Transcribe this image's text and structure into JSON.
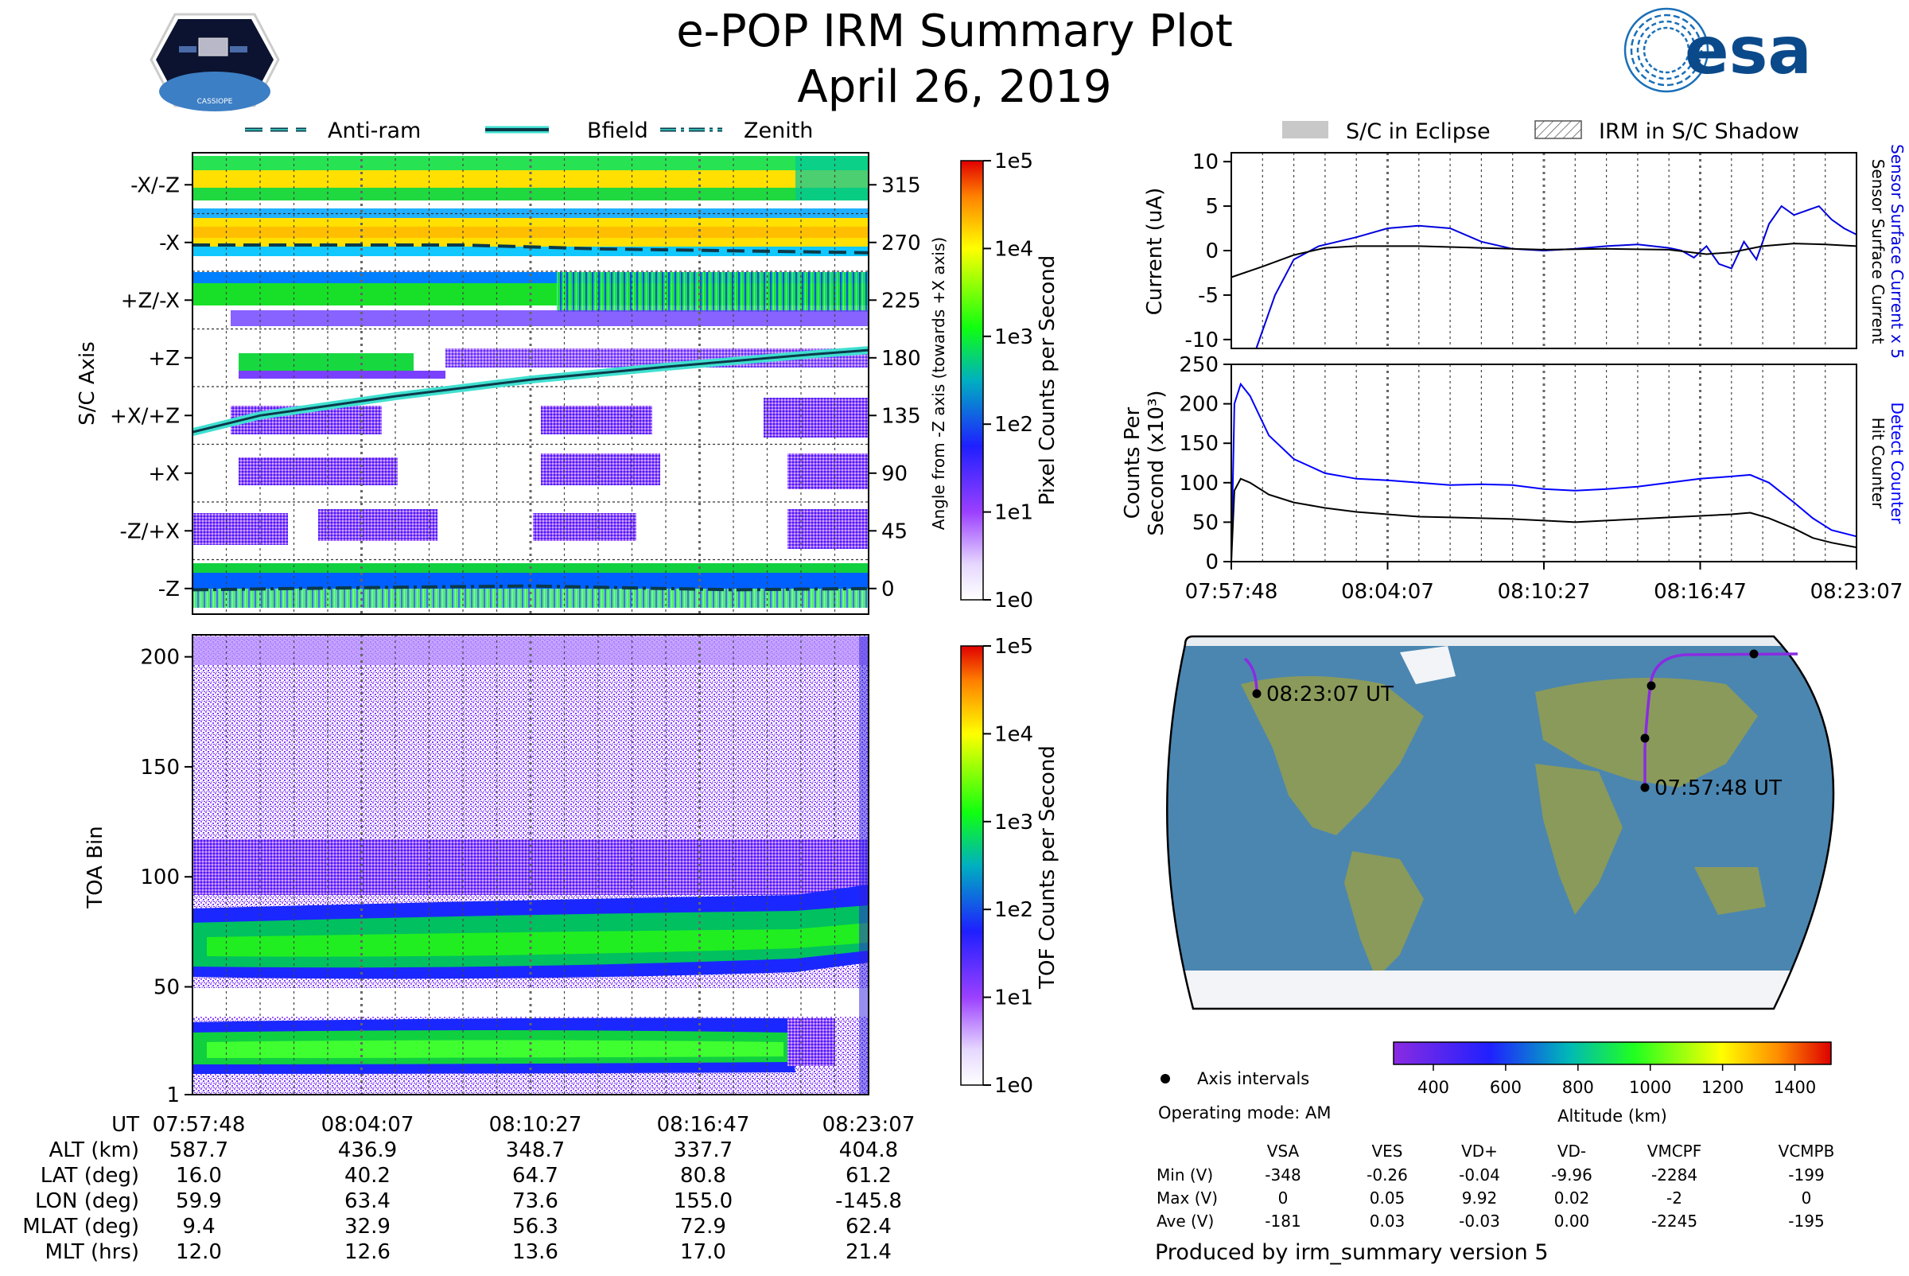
{
  "header": {
    "title_line1": "e-POP IRM Summary Plot",
    "title_line2": "April 26, 2019",
    "left_logo_text": "CASSIOPE",
    "right_logo_text": "esa"
  },
  "colors": {
    "antiram": "#0b3a4a",
    "bfield_outline": "#40e0d0",
    "current_blue": "#0000dd",
    "counts_blue": "#0000ff",
    "black": "#000000",
    "eclipse_gray": "#c8c8c8",
    "ocean": "#4b86b0",
    "land": "#8a9a5b",
    "ice": "#f2f4f8"
  },
  "legend_top": {
    "antiram": "Anti-ram",
    "bfield": "Bfield",
    "zenith": "Zenith"
  },
  "legend_right": {
    "eclipse": "S/C in Eclipse",
    "shadow": "IRM in S/C Shadow"
  },
  "chart_data": [
    {
      "id": "pixel_panel",
      "type": "heatmap",
      "ylabel": "S/C Axis",
      "y_right_label": "Angle from -Z axis (towards +X axis)",
      "categories": [
        "-X/-Z",
        "-X",
        "+Z/-X",
        "+Z",
        "+X/+Z",
        "+X",
        "-Z/+X",
        "-Z"
      ],
      "angle_ticks": [
        315,
        270,
        225,
        180,
        135,
        90,
        45,
        0
      ],
      "ylim": [
        -20,
        340
      ],
      "x_ticks": [
        "07:57:48",
        "08:04:07",
        "08:10:27",
        "08:16:47",
        "08:23:07"
      ],
      "bfield_angle": [
        [
          0,
          122
        ],
        [
          0.1,
          135
        ],
        [
          0.3,
          150
        ],
        [
          0.5,
          163
        ],
        [
          0.7,
          173
        ],
        [
          0.9,
          182
        ],
        [
          1.0,
          186
        ]
      ],
      "antiram_angle": [
        [
          0,
          268
        ],
        [
          0.4,
          268
        ],
        [
          0.6,
          265
        ],
        [
          1.0,
          262
        ]
      ],
      "zenith_angle": [
        [
          0,
          -1
        ],
        [
          0.3,
          1
        ],
        [
          0.5,
          2
        ],
        [
          0.8,
          -1
        ],
        [
          1.0,
          0
        ]
      ],
      "colorbar_label": "Pixel Counts per Second",
      "colorbar_ticks": [
        "1e5",
        "1e4",
        "1e3",
        "1e2",
        "1e1",
        "1e0"
      ]
    },
    {
      "id": "toa_panel",
      "type": "heatmap",
      "ylabel": "TOA Bin",
      "ylim": [
        1,
        210
      ],
      "y_ticks": [
        200,
        150,
        100,
        50,
        1
      ],
      "x_ticks": [
        "07:57:48",
        "08:04:07",
        "08:10:27",
        "08:16:47",
        "08:23:07"
      ],
      "colorbar_label": "TOF Counts per Second",
      "colorbar_ticks": [
        "1e5",
        "1e4",
        "1e3",
        "1e2",
        "1e1",
        "1e0"
      ]
    },
    {
      "id": "current_panel",
      "type": "line",
      "ylabel": "Current (uA)",
      "y_right_label_blue": "Sensor Surface Current x 5",
      "y_right_label_black": "Sensor Surface Current",
      "ylim": [
        -11,
        11
      ],
      "y_ticks": [
        10,
        5,
        0,
        -5,
        -10
      ],
      "series": [
        {
          "name": "Sensor Surface Current x 5",
          "color": "blue",
          "points": [
            [
              0.04,
              -11
            ],
            [
              0.07,
              -5
            ],
            [
              0.1,
              -1
            ],
            [
              0.14,
              0.5
            ],
            [
              0.2,
              1.5
            ],
            [
              0.25,
              2.5
            ],
            [
              0.3,
              2.8
            ],
            [
              0.35,
              2.5
            ],
            [
              0.4,
              1
            ],
            [
              0.45,
              0.2
            ],
            [
              0.5,
              0
            ],
            [
              0.55,
              0.2
            ],
            [
              0.6,
              0.5
            ],
            [
              0.65,
              0.7
            ],
            [
              0.7,
              0.3
            ],
            [
              0.72,
              0
            ],
            [
              0.74,
              -0.8
            ],
            [
              0.76,
              0.5
            ],
            [
              0.78,
              -1.5
            ],
            [
              0.8,
              -2
            ],
            [
              0.82,
              1
            ],
            [
              0.84,
              -1
            ],
            [
              0.86,
              3
            ],
            [
              0.88,
              5
            ],
            [
              0.9,
              4
            ],
            [
              0.92,
              4.5
            ],
            [
              0.94,
              5
            ],
            [
              0.96,
              3.5
            ],
            [
              0.98,
              2.5
            ],
            [
              1.0,
              1.8
            ]
          ]
        },
        {
          "name": "Sensor Surface Current",
          "color": "black",
          "points": [
            [
              0,
              -3
            ],
            [
              0.05,
              -1.8
            ],
            [
              0.1,
              -0.5
            ],
            [
              0.15,
              0.3
            ],
            [
              0.2,
              0.5
            ],
            [
              0.3,
              0.5
            ],
            [
              0.4,
              0.3
            ],
            [
              0.5,
              0.1
            ],
            [
              0.6,
              0.2
            ],
            [
              0.7,
              0.1
            ],
            [
              0.76,
              -0.4
            ],
            [
              0.8,
              -0.2
            ],
            [
              0.85,
              0.5
            ],
            [
              0.9,
              0.8
            ],
            [
              0.95,
              0.7
            ],
            [
              1.0,
              0.5
            ]
          ]
        }
      ]
    },
    {
      "id": "counts_panel",
      "type": "line",
      "ylabel_line1": "Counts Per",
      "ylabel_line2": "Second (x10³)",
      "y_right_label_blue": "Detect Counter",
      "y_right_label_black": "Hit Counter",
      "ylim": [
        0,
        250
      ],
      "y_ticks": [
        250,
        200,
        150,
        100,
        50,
        0
      ],
      "x_ticks": [
        "07:57:48",
        "08:04:07",
        "08:10:27",
        "08:16:47",
        "08:23:07"
      ],
      "series": [
        {
          "name": "Detect Counter",
          "color": "blue",
          "points": [
            [
              0,
              0
            ],
            [
              0.005,
              200
            ],
            [
              0.015,
              225
            ],
            [
              0.03,
              210
            ],
            [
              0.06,
              160
            ],
            [
              0.1,
              130
            ],
            [
              0.15,
              112
            ],
            [
              0.2,
              105
            ],
            [
              0.25,
              103
            ],
            [
              0.3,
              100
            ],
            [
              0.35,
              97
            ],
            [
              0.4,
              98
            ],
            [
              0.45,
              97
            ],
            [
              0.5,
              92
            ],
            [
              0.55,
              90
            ],
            [
              0.6,
              92
            ],
            [
              0.65,
              95
            ],
            [
              0.7,
              100
            ],
            [
              0.75,
              105
            ],
            [
              0.8,
              108
            ],
            [
              0.83,
              110
            ],
            [
              0.86,
              100
            ],
            [
              0.9,
              75
            ],
            [
              0.93,
              55
            ],
            [
              0.96,
              40
            ],
            [
              1.0,
              32
            ]
          ]
        },
        {
          "name": "Hit Counter",
          "color": "black",
          "points": [
            [
              0,
              0
            ],
            [
              0.005,
              90
            ],
            [
              0.015,
              105
            ],
            [
              0.03,
              100
            ],
            [
              0.06,
              85
            ],
            [
              0.1,
              75
            ],
            [
              0.15,
              68
            ],
            [
              0.2,
              63
            ],
            [
              0.25,
              60
            ],
            [
              0.3,
              57
            ],
            [
              0.35,
              56
            ],
            [
              0.4,
              55
            ],
            [
              0.45,
              54
            ],
            [
              0.5,
              52
            ],
            [
              0.55,
              50
            ],
            [
              0.6,
              52
            ],
            [
              0.65,
              54
            ],
            [
              0.7,
              56
            ],
            [
              0.75,
              58
            ],
            [
              0.8,
              60
            ],
            [
              0.83,
              62
            ],
            [
              0.86,
              55
            ],
            [
              0.9,
              42
            ],
            [
              0.93,
              30
            ],
            [
              0.96,
              24
            ],
            [
              1.0,
              18
            ]
          ]
        }
      ]
    }
  ],
  "map": {
    "start_label": "07:57:48 UT",
    "end_label": "08:23:07 UT",
    "axis_intervals_label": "Axis intervals",
    "altitude_colorbar_label": "Altitude (km)",
    "altitude_ticks": [
      400,
      600,
      800,
      1000,
      1200,
      1400
    ]
  },
  "info": {
    "operating_mode": "Operating mode: AM",
    "produced_by": "Produced by irm_summary version 5"
  },
  "voltage_table": {
    "columns": [
      "VSA",
      "VES",
      "VD+",
      "VD-",
      "VMCPF",
      "VCMPB"
    ],
    "rows": [
      {
        "label": "Min (V)",
        "values": [
          "-348",
          "-0.26",
          "-0.04",
          "-9.96",
          "-2284",
          "-199"
        ]
      },
      {
        "label": "Max (V)",
        "values": [
          "0",
          "0.05",
          "9.92",
          "0.02",
          "-2",
          "0"
        ]
      },
      {
        "label": "Ave (V)",
        "values": [
          "-181",
          "0.03",
          "-0.03",
          "0.00",
          "-2245",
          "-195"
        ]
      }
    ]
  },
  "ephemeris": {
    "rows": [
      {
        "label": "UT",
        "values": [
          "07:57:48",
          "08:04:07",
          "08:10:27",
          "08:16:47",
          "08:23:07"
        ]
      },
      {
        "label": "ALT (km)",
        "values": [
          "587.7",
          "436.9",
          "348.7",
          "337.7",
          "404.8"
        ]
      },
      {
        "label": "LAT (deg)",
        "values": [
          "16.0",
          "40.2",
          "64.7",
          "80.8",
          "61.2"
        ]
      },
      {
        "label": "LON (deg)",
        "values": [
          "59.9",
          "63.4",
          "73.6",
          "155.0",
          "-145.8"
        ]
      },
      {
        "label": "MLAT (deg)",
        "values": [
          "9.4",
          "32.9",
          "56.3",
          "72.9",
          "62.4"
        ]
      },
      {
        "label": "MLT (hrs)",
        "values": [
          "12.0",
          "12.6",
          "13.6",
          "17.0",
          "21.4"
        ]
      }
    ]
  }
}
